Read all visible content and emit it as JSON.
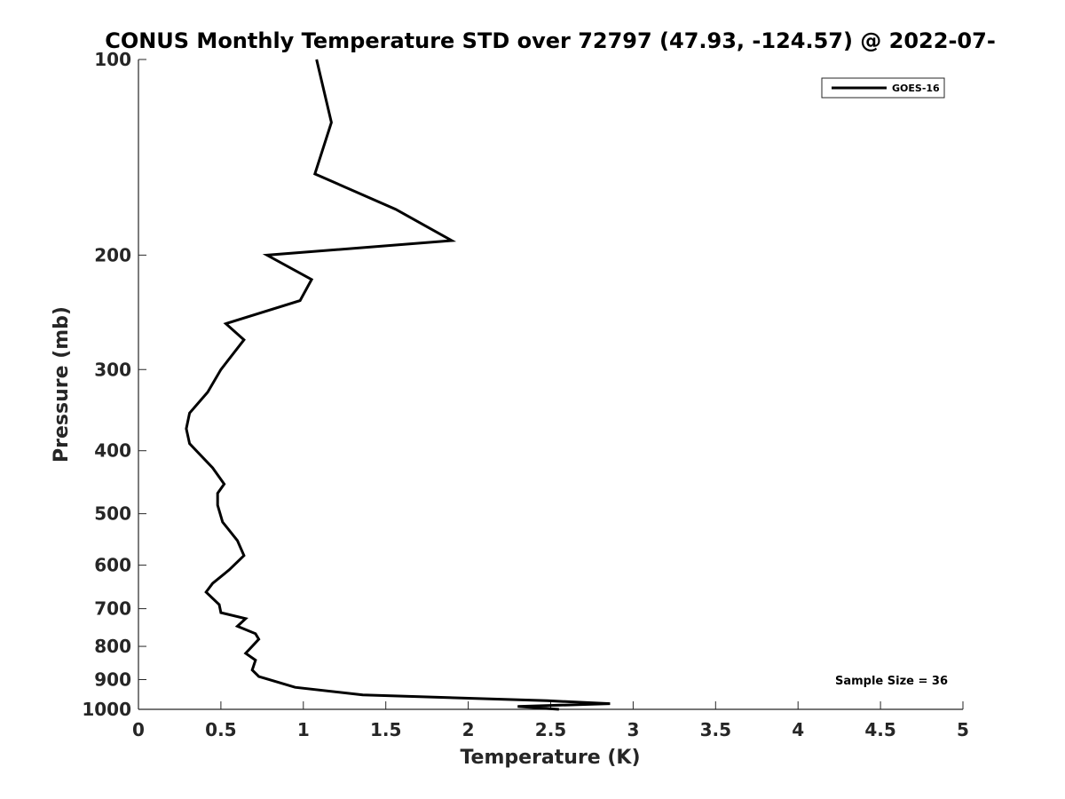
{
  "chart_data": {
    "type": "line",
    "title": "CONUS Monthly Temperature STD over 72797 (47.93, -124.57) @ 2022-07-",
    "xlabel": "Temperature (K)",
    "ylabel": "Pressure (mb)",
    "xlim": [
      0,
      5
    ],
    "ylim": [
      100,
      1000
    ],
    "y_scale": "log",
    "y_reversed": true,
    "x_ticks": [
      0,
      0.5,
      1,
      1.5,
      2,
      2.5,
      3,
      3.5,
      4,
      4.5,
      5
    ],
    "x_tick_labels": [
      "0",
      "0.5",
      "1",
      "1.5",
      "2",
      "2.5",
      "3",
      "3.5",
      "4",
      "4.5",
      "5"
    ],
    "y_ticks": [
      100,
      200,
      300,
      400,
      500,
      600,
      700,
      800,
      900,
      1000
    ],
    "y_tick_labels": [
      "100",
      "200",
      "300",
      "400",
      "500",
      "600",
      "700",
      "800",
      "900",
      "1000"
    ],
    "grid": false,
    "legend_position": "top-right",
    "annotation": "Sample Size = 36",
    "series": [
      {
        "name": "GOES-16",
        "color": "#000000",
        "x": [
          1.08,
          1.17,
          1.07,
          1.56,
          1.9,
          0.78,
          1.05,
          0.98,
          0.53,
          0.64,
          0.5,
          0.42,
          0.31,
          0.29,
          0.31,
          0.45,
          0.52,
          0.48,
          0.48,
          0.51,
          0.6,
          0.64,
          0.55,
          0.45,
          0.41,
          0.49,
          0.5,
          0.65,
          0.6,
          0.71,
          0.73,
          0.65,
          0.71,
          0.69,
          0.73,
          0.95,
          1.36,
          2.48,
          2.86,
          2.3,
          2.55
        ],
        "y": [
          100,
          125,
          150,
          170,
          190,
          200,
          218,
          235,
          255,
          270,
          300,
          325,
          350,
          370,
          390,
          425,
          450,
          465,
          485,
          515,
          550,
          580,
          610,
          640,
          660,
          690,
          710,
          725,
          745,
          765,
          780,
          820,
          840,
          870,
          890,
          925,
          950,
          970,
          980,
          990,
          1000
        ]
      }
    ]
  }
}
